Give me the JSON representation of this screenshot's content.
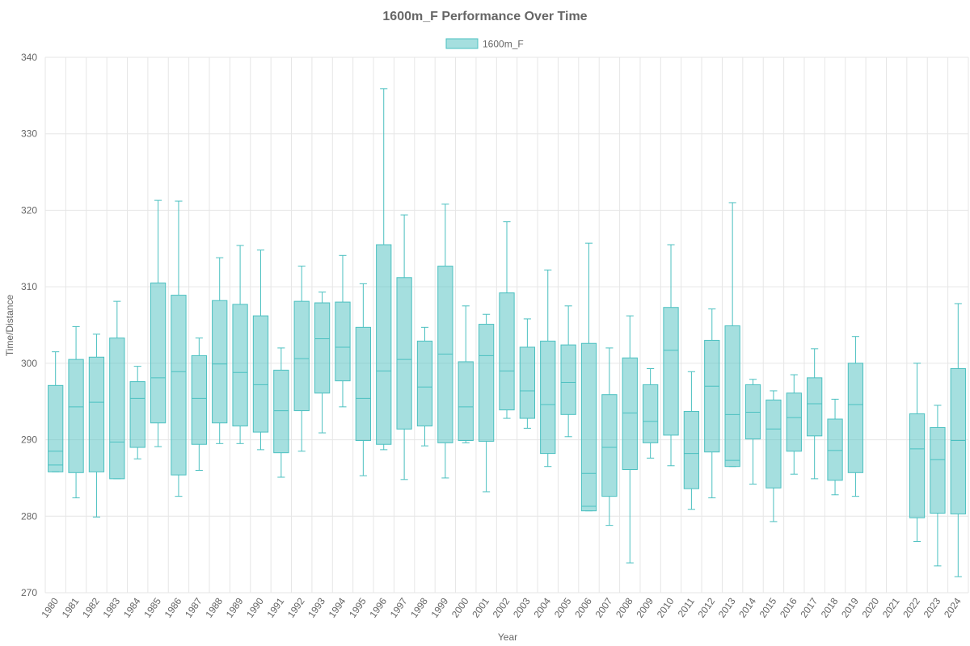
{
  "colors": {
    "box_fill": "rgba(75,192,192,0.5)",
    "box_stroke": "#4bc0c0",
    "text": "#666666",
    "grid": "#e6e6e6"
  },
  "chart_data": {
    "type": "boxplot",
    "title": "1600m_F Performance Over Time",
    "xlabel": "Year",
    "ylabel": "Time/Distance",
    "ylim": [
      270,
      340
    ],
    "yticks": [
      270,
      280,
      290,
      300,
      310,
      320,
      330,
      340
    ],
    "grid": true,
    "legend_position": "top-center",
    "series": [
      {
        "name": "1600m_F",
        "categories": [
          "1980",
          "1981",
          "1982",
          "1983",
          "1984",
          "1985",
          "1986",
          "1987",
          "1988",
          "1989",
          "1990",
          "1991",
          "1992",
          "1993",
          "1994",
          "1995",
          "1996",
          "1997",
          "1998",
          "1999",
          "2000",
          "2001",
          "2002",
          "2003",
          "2004",
          "2005",
          "2006",
          "2007",
          "2008",
          "2009",
          "2010",
          "2011",
          "2012",
          "2013",
          "2014",
          "2015",
          "2016",
          "2017",
          "2018",
          "2019",
          "2020",
          "2021",
          "2022",
          "2023",
          "2024"
        ],
        "boxes": [
          {
            "min": 285.8,
            "q1": 285.8,
            "median": 288.5,
            "q3": 297.1,
            "max": 301.5,
            "extra": 286.7
          },
          {
            "min": 282.4,
            "q1": 285.7,
            "median": 294.3,
            "q3": 300.5,
            "max": 304.8
          },
          {
            "min": 279.9,
            "q1": 285.8,
            "median": 294.9,
            "q3": 300.8,
            "max": 303.8
          },
          {
            "min": 284.9,
            "q1": 284.9,
            "median": 289.7,
            "q3": 303.3,
            "max": 308.1
          },
          {
            "min": 287.5,
            "q1": 289.0,
            "median": 295.4,
            "q3": 297.6,
            "max": 299.6
          },
          {
            "min": 289.1,
            "q1": 292.2,
            "median": 298.1,
            "q3": 310.5,
            "max": 321.3
          },
          {
            "min": 282.6,
            "q1": 285.4,
            "median": 298.9,
            "q3": 308.9,
            "max": 321.2
          },
          {
            "min": 286.0,
            "q1": 289.4,
            "median": 295.4,
            "q3": 301.0,
            "max": 303.3
          },
          {
            "min": 289.5,
            "q1": 292.2,
            "median": 299.9,
            "q3": 308.2,
            "max": 313.8
          },
          {
            "min": 289.5,
            "q1": 291.8,
            "median": 298.8,
            "q3": 307.7,
            "max": 315.4
          },
          {
            "min": 288.7,
            "q1": 291.0,
            "median": 297.2,
            "q3": 306.2,
            "max": 314.8
          },
          {
            "min": 285.1,
            "q1": 288.3,
            "median": 293.8,
            "q3": 299.1,
            "max": 302.0
          },
          {
            "min": 288.5,
            "q1": 293.8,
            "median": 300.6,
            "q3": 308.1,
            "max": 312.7
          },
          {
            "min": 290.9,
            "q1": 296.1,
            "median": 303.2,
            "q3": 307.9,
            "max": 309.3
          },
          {
            "min": 294.3,
            "q1": 297.7,
            "median": 302.1,
            "q3": 308.0,
            "max": 314.1
          },
          {
            "min": 285.3,
            "q1": 289.9,
            "median": 295.4,
            "q3": 304.7,
            "max": 310.4
          },
          {
            "min": 288.7,
            "q1": 289.4,
            "median": 299.0,
            "q3": 315.5,
            "max": 335.9
          },
          {
            "min": 284.8,
            "q1": 291.4,
            "median": 300.5,
            "q3": 311.2,
            "max": 319.4
          },
          {
            "min": 289.2,
            "q1": 291.8,
            "median": 296.9,
            "q3": 302.9,
            "max": 304.7
          },
          {
            "min": 285.0,
            "q1": 289.6,
            "median": 301.2,
            "q3": 312.7,
            "max": 320.8
          },
          {
            "min": 289.6,
            "q1": 289.9,
            "median": 294.3,
            "q3": 300.2,
            "max": 307.5
          },
          {
            "min": 283.2,
            "q1": 289.8,
            "median": 301.0,
            "q3": 305.1,
            "max": 306.4
          },
          {
            "min": 292.8,
            "q1": 293.9,
            "median": 299.0,
            "q3": 309.2,
            "max": 318.5
          },
          {
            "min": 291.5,
            "q1": 292.8,
            "median": 296.4,
            "q3": 302.1,
            "max": 305.8
          },
          {
            "min": 286.5,
            "q1": 288.2,
            "median": 294.6,
            "q3": 302.9,
            "max": 312.2
          },
          {
            "min": 290.4,
            "q1": 293.3,
            "median": 297.5,
            "q3": 302.4,
            "max": 307.5
          },
          {
            "min": 280.7,
            "q1": 280.7,
            "median": 285.6,
            "q3": 302.6,
            "max": 315.7,
            "extra": 281.3
          },
          {
            "min": 278.8,
            "q1": 282.6,
            "median": 289.0,
            "q3": 295.9,
            "max": 302.0
          },
          {
            "min": 273.9,
            "q1": 286.1,
            "median": 293.5,
            "q3": 300.7,
            "max": 306.2
          },
          {
            "min": 287.6,
            "q1": 289.6,
            "median": 292.4,
            "q3": 297.2,
            "max": 299.3
          },
          {
            "min": 286.6,
            "q1": 290.6,
            "median": 301.7,
            "q3": 307.3,
            "max": 315.5
          },
          {
            "min": 280.9,
            "q1": 283.6,
            "median": 288.2,
            "q3": 293.7,
            "max": 298.9
          },
          {
            "min": 282.4,
            "q1": 288.4,
            "median": 297.0,
            "q3": 303.0,
            "max": 307.1
          },
          {
            "min": 286.5,
            "q1": 286.5,
            "median": 293.3,
            "q3": 304.9,
            "max": 321.0,
            "extra": 287.3
          },
          {
            "min": 284.2,
            "q1": 290.1,
            "median": 293.6,
            "q3": 297.2,
            "max": 297.9
          },
          {
            "min": 279.3,
            "q1": 283.7,
            "median": 291.4,
            "q3": 295.2,
            "max": 296.4
          },
          {
            "min": 285.5,
            "q1": 288.5,
            "median": 292.9,
            "q3": 296.1,
            "max": 298.5
          },
          {
            "min": 284.9,
            "q1": 290.5,
            "median": 294.7,
            "q3": 298.1,
            "max": 301.9
          },
          {
            "min": 282.8,
            "q1": 284.7,
            "median": 288.6,
            "q3": 292.7,
            "max": 295.3
          },
          {
            "min": 282.6,
            "q1": 285.7,
            "median": 294.6,
            "q3": 300.0,
            "max": 303.5
          },
          null,
          null,
          {
            "min": 276.7,
            "q1": 279.8,
            "median": 288.8,
            "q3": 293.4,
            "max": 300.0
          },
          {
            "min": 273.5,
            "q1": 280.4,
            "median": 287.4,
            "q3": 291.6,
            "max": 294.5
          },
          {
            "min": 272.1,
            "q1": 280.3,
            "median": 289.9,
            "q3": 299.3,
            "max": 307.8
          }
        ]
      }
    ]
  }
}
